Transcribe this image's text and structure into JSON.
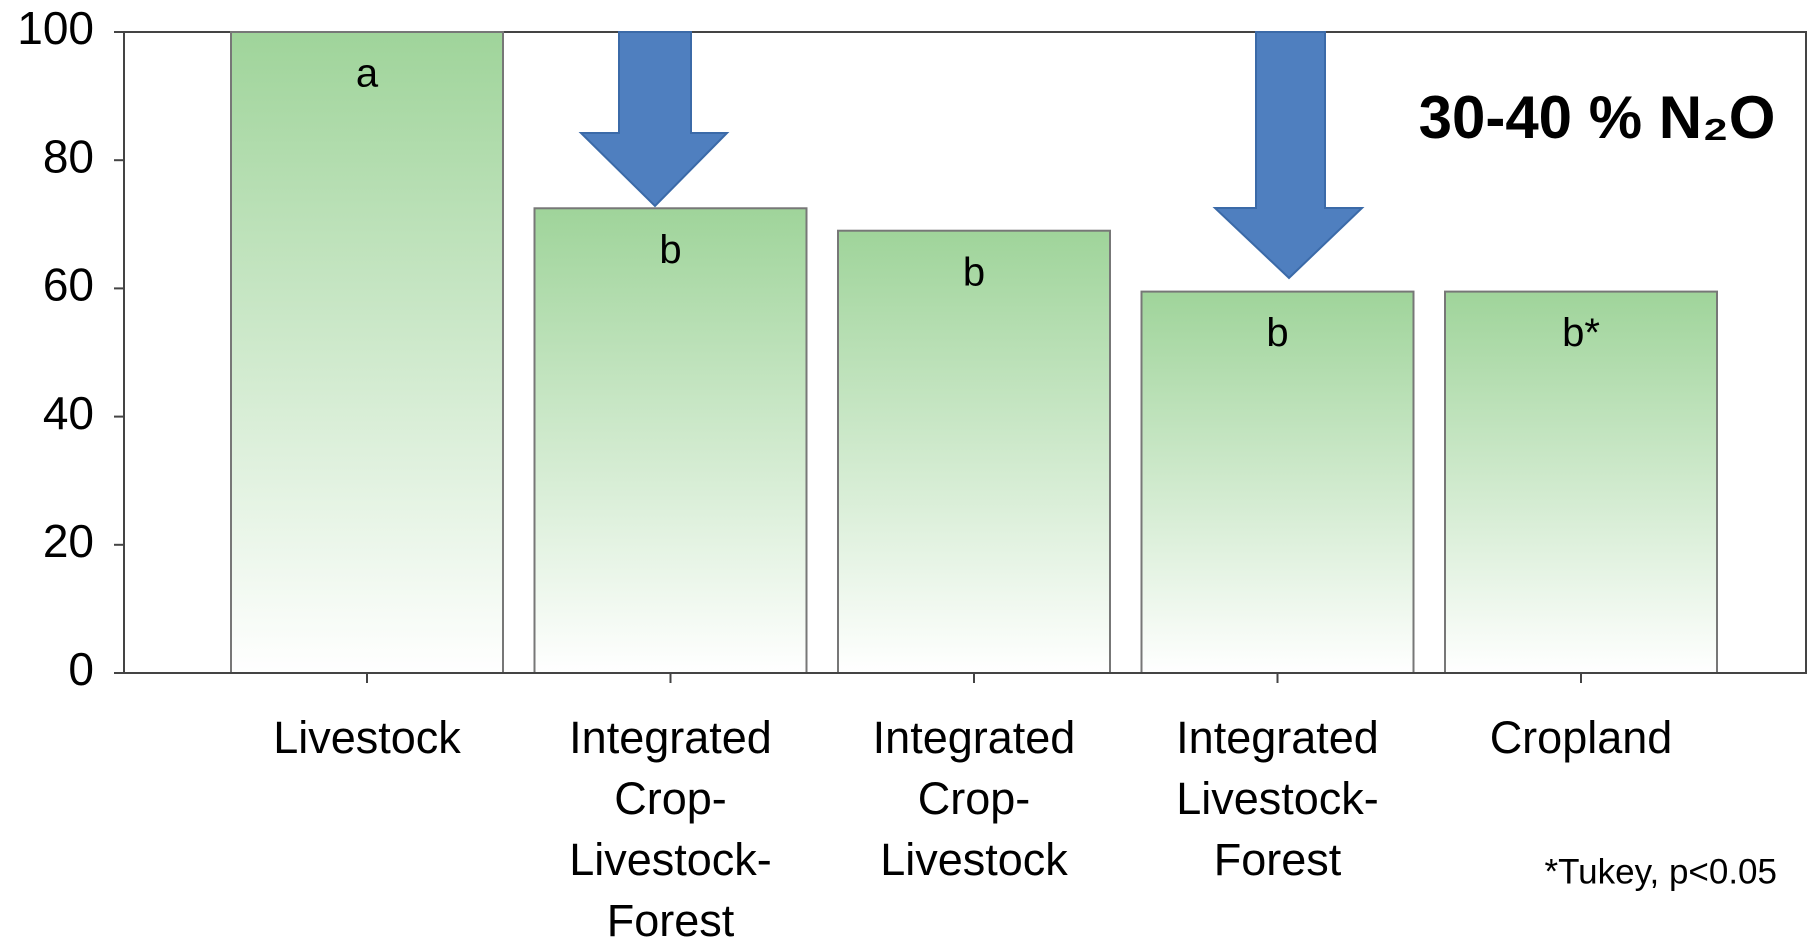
{
  "chart_data": {
    "type": "bar",
    "categories": [
      "Livestock",
      "Integrated\nCrop-\nLivestock-\nForest",
      "Integrated\nCrop-\nLivestock",
      "Integrated\nLivestock-\nForest",
      "Cropland"
    ],
    "values": [
      100,
      72.5,
      69,
      59.5,
      59.5
    ],
    "bar_letters": [
      "a",
      "b",
      "b",
      "b",
      "b*"
    ],
    "color": "#9fd49a",
    "ylim": [
      0,
      100
    ],
    "yticks": [
      0,
      20,
      40,
      60,
      80,
      100
    ],
    "annotation": "30-40 % N₂O",
    "footnote": "*Tukey, p<0.05"
  }
}
